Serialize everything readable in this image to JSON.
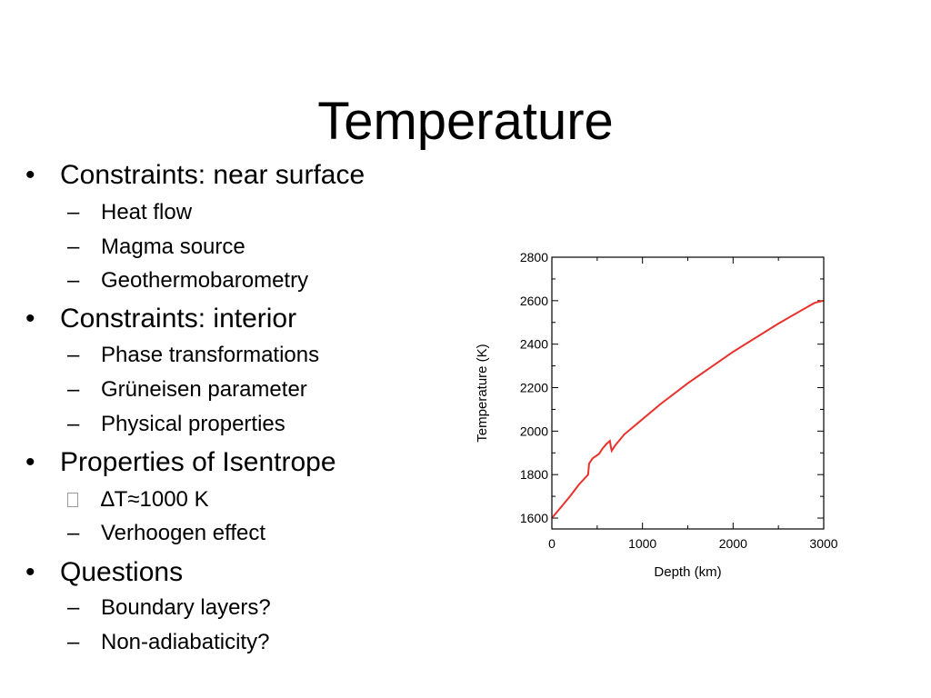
{
  "slide": {
    "title": "Temperature"
  },
  "bullets": [
    {
      "level": 1,
      "marker": "•",
      "text": "Constraints: near surface"
    },
    {
      "level": 2,
      "marker": "–",
      "text": "Heat flow"
    },
    {
      "level": 2,
      "marker": "–",
      "text": "Magma source"
    },
    {
      "level": 2,
      "marker": "–",
      "text": "Geothermobarometry"
    },
    {
      "level": 1,
      "marker": "•",
      "text": "Constraints: interior"
    },
    {
      "level": 2,
      "marker": "–",
      "text": "Phase transformations"
    },
    {
      "level": 2,
      "marker": "–",
      "text": "Grüneisen parameter"
    },
    {
      "level": 2,
      "marker": "–",
      "text": "Physical properties"
    },
    {
      "level": 1,
      "marker": "•",
      "text": "Properties of Isentrope"
    },
    {
      "level": 2,
      "marker": "",
      "text": "∆T≈1000 K"
    },
    {
      "level": 2,
      "marker": "–",
      "text": "Verhoogen effect"
    },
    {
      "level": 1,
      "marker": "•",
      "text": "Questions"
    },
    {
      "level": 2,
      "marker": "–",
      "text": "Boundary layers?"
    },
    {
      "level": 2,
      "marker": "–",
      "text": "Non-adiabaticity?"
    }
  ],
  "chart_data": {
    "type": "line",
    "title": "",
    "xlabel": "Depth (km)",
    "ylabel": "Temperature (K)",
    "xlim": [
      0,
      3000
    ],
    "ylim": [
      1550,
      2800
    ],
    "xticks": [
      0,
      1000,
      2000,
      3000
    ],
    "yticks": [
      1600,
      1800,
      2000,
      2200,
      2400,
      2600,
      2800
    ],
    "grid": false,
    "series": [
      {
        "color": "#e8322b",
        "x": [
          0,
          100,
          200,
          300,
          400,
          410,
          450,
          520,
          560,
          600,
          640,
          650,
          660,
          700,
          800,
          1000,
          1200,
          1500,
          2000,
          2500,
          2900,
          3000
        ],
        "y": [
          1600,
          1650,
          1700,
          1755,
          1800,
          1850,
          1875,
          1895,
          1920,
          1940,
          1955,
          1930,
          1910,
          1935,
          1985,
          2055,
          2125,
          2220,
          2365,
          2495,
          2590,
          2600
        ]
      }
    ]
  }
}
